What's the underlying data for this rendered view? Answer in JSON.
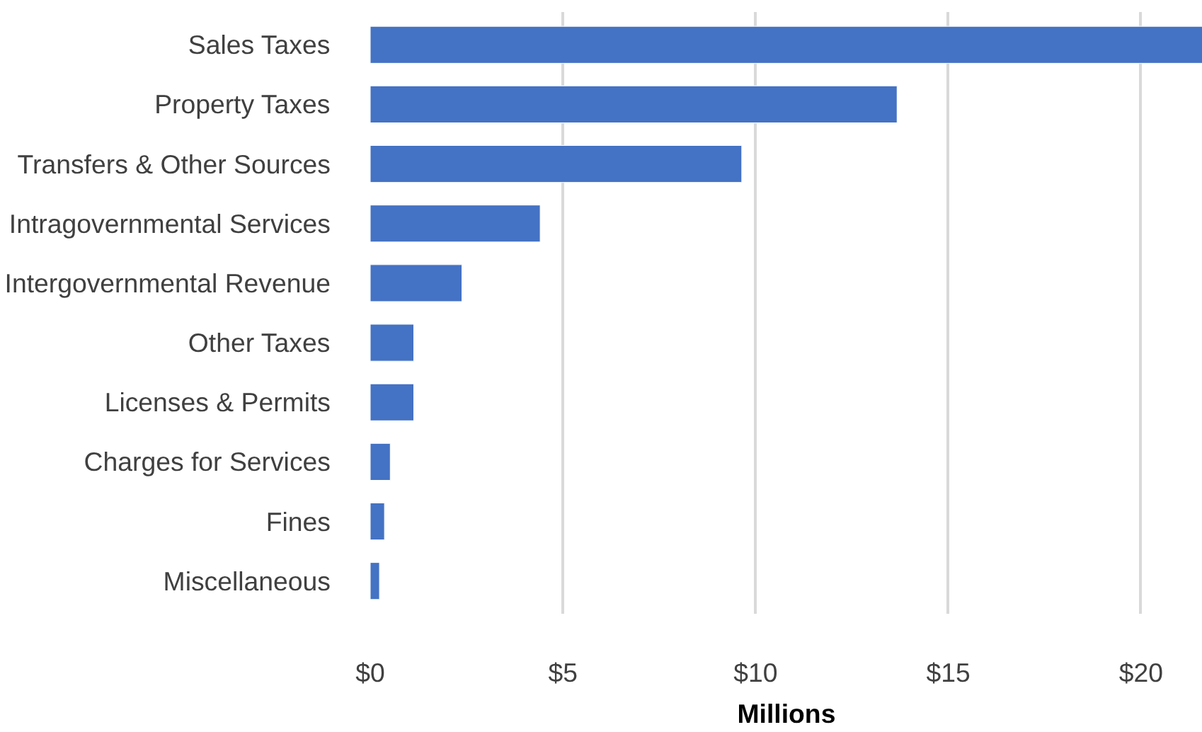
{
  "chart_data": {
    "type": "bar",
    "orientation": "horizontal",
    "xlabel": "Millions",
    "categories": [
      "Sales Taxes",
      "Property Taxes",
      "Transfers & Other Sources",
      "Intragovernmental Services",
      "Intergovernmental Revenue",
      "Other Taxes",
      "Licenses & Permits",
      "Charges for Services",
      "Fines",
      "Miscellaneous"
    ],
    "values": [
      21.6,
      13.67,
      9.64,
      4.41,
      2.38,
      1.13,
      1.13,
      0.52,
      0.37,
      0.24
    ],
    "color": "#4472c4",
    "xlim": [
      0,
      21.6
    ],
    "xticks": [
      {
        "value": 0,
        "label": "$0"
      },
      {
        "value": 5,
        "label": "$5"
      },
      {
        "value": 10,
        "label": "$10"
      },
      {
        "value": 15,
        "label": "$15"
      },
      {
        "value": 20,
        "label": "$20"
      }
    ],
    "grid": "x"
  }
}
